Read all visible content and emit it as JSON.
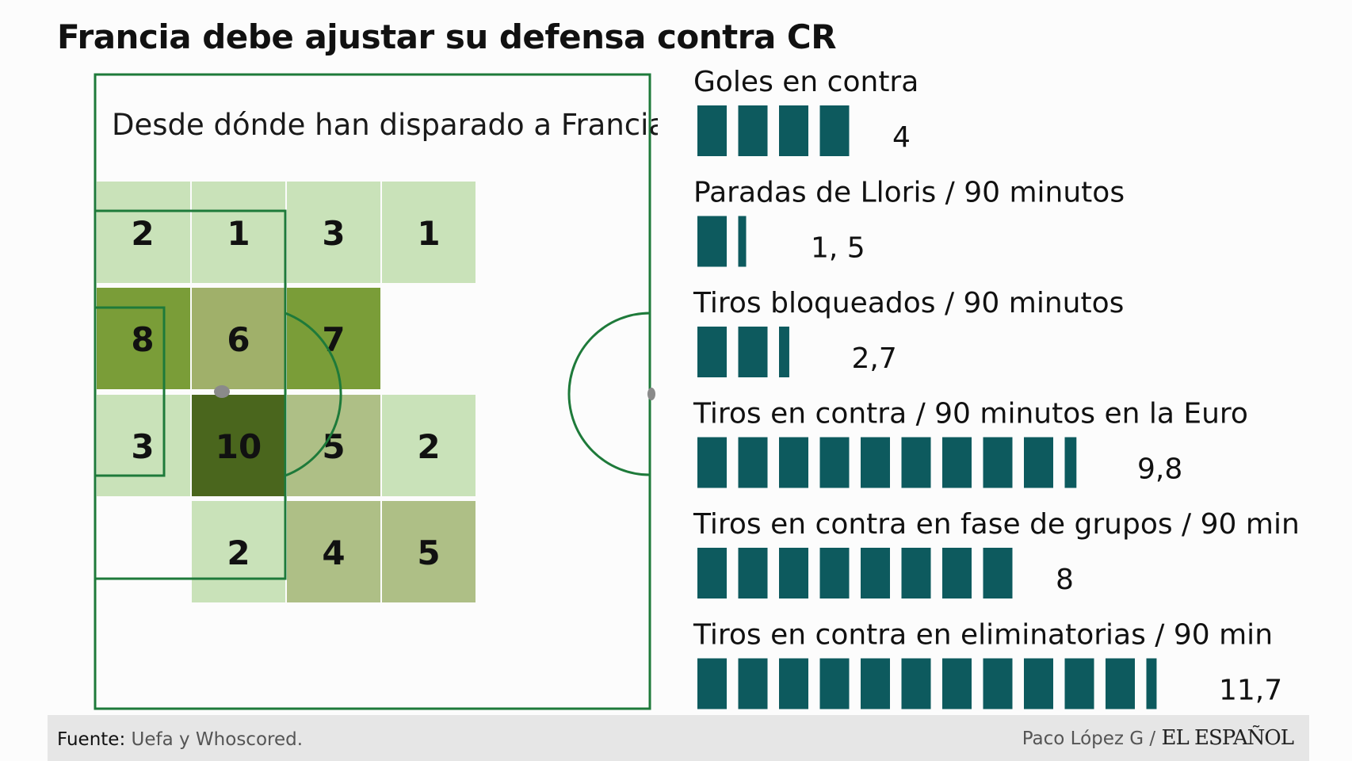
{
  "title": "Francia debe ajustar su defensa contra CR",
  "heatmap": {
    "subtitle": "Desde dónde han disparado a Francia",
    "colors": {
      "line": "#1e7a3a",
      "low": "#c9e2b9",
      "lowmid": "#aebf86",
      "mid": "#a0b06a",
      "high": "#7a9d38",
      "max": "#4a661d",
      "bar": "#0d5a5e"
    }
  },
  "chart_data": [
    {
      "type": "heatmap",
      "title": "Desde dónde han disparado a Francia",
      "rows": 4,
      "cols": 4,
      "cells": [
        [
          2,
          1,
          3,
          1
        ],
        [
          8,
          6,
          7,
          null
        ],
        [
          3,
          10,
          5,
          2
        ],
        [
          null,
          2,
          4,
          5
        ]
      ]
    },
    {
      "type": "bar",
      "series": [
        {
          "name": "Goles en contra",
          "value": 4,
          "label": "4"
        },
        {
          "name": "Paradas de Lloris / 90 minutos",
          "value": 1.5,
          "label": "1, 5"
        },
        {
          "name": "Tiros bloqueados / 90 minutos",
          "value": 2.7,
          "label": "2,7"
        },
        {
          "name": "Tiros en contra / 90 minutos en la Euro",
          "value": 9.8,
          "label": "9,8"
        },
        {
          "name": "Tiros en contra en fase de grupos / 90 min",
          "value": 8,
          "label": "8"
        },
        {
          "name": "Tiros en contra en eliminatorias / 90 min",
          "value": 11.7,
          "label": "11,7"
        }
      ]
    }
  ],
  "footer": {
    "source_label": "Fuente:",
    "source_value": " Uefa y Whoscored.",
    "author": "Paco López G / ",
    "brand": "EL ESPAÑOL"
  }
}
